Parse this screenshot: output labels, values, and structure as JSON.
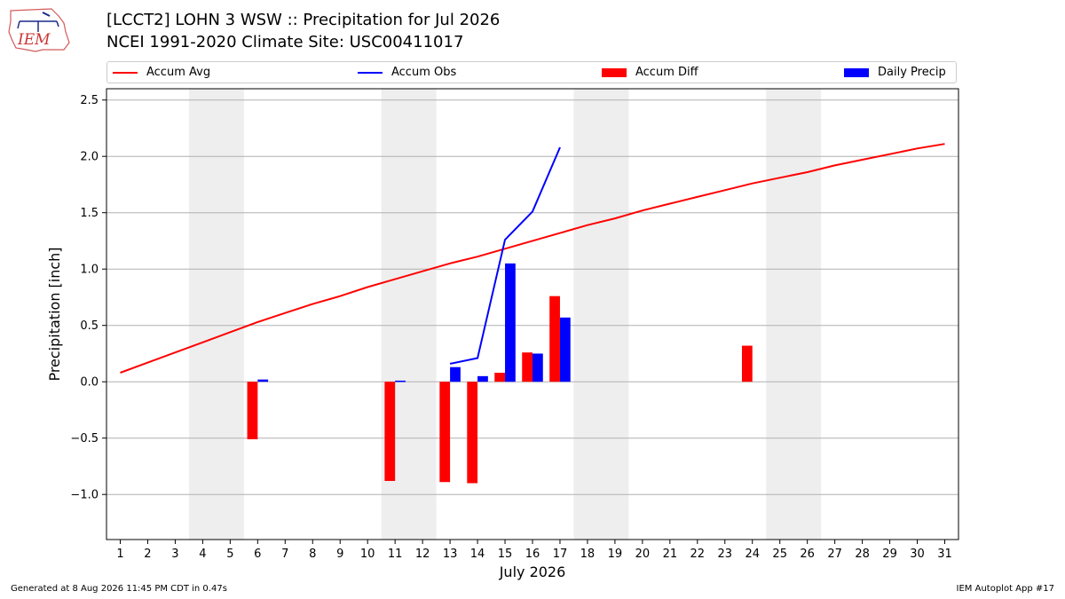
{
  "header": {
    "title_line1": "[LCCT2] LOHN 3 WSW :: Precipitation for Jul 2026",
    "title_line2": "NCEI 1991-2020 Climate Site: USC00411017",
    "logo_text": "IEM"
  },
  "footer": {
    "generated": "Generated at 8 Aug 2026 11:45 PM CDT in 0.47s",
    "app": "IEM Autoplot App #17"
  },
  "legend": {
    "accum_avg": "Accum Avg",
    "accum_obs": "Accum Obs",
    "accum_diff": "Accum Diff",
    "daily_precip": "Daily Precip"
  },
  "colors": {
    "avg": "#ff0000",
    "obs": "#0000ff",
    "diff": "#ff0000",
    "daily": "#0000ff",
    "weekend": "#eeeeee"
  },
  "chart_data": {
    "type": "bar",
    "xlabel": "July 2026",
    "ylabel": "Precipitation [inch]",
    "xlim": [
      0.5,
      31.5
    ],
    "ylim": [
      -1.4,
      2.6
    ],
    "yticks": [
      -1.0,
      -0.5,
      0.0,
      0.5,
      1.0,
      1.5,
      2.0,
      2.5
    ],
    "ytick_labels": [
      "−1.0",
      "−0.5",
      "0.0",
      "0.5",
      "1.0",
      "1.5",
      "2.0",
      "2.5"
    ],
    "days": [
      1,
      2,
      3,
      4,
      5,
      6,
      7,
      8,
      9,
      10,
      11,
      12,
      13,
      14,
      15,
      16,
      17,
      18,
      19,
      20,
      21,
      22,
      23,
      24,
      25,
      26,
      27,
      28,
      29,
      30,
      31
    ],
    "grid": "horizontal",
    "legend_position": "top",
    "weekend_spans": [
      [
        4,
        5
      ],
      [
        11,
        12
      ],
      [
        18,
        19
      ],
      [
        25,
        26
      ]
    ],
    "accum_avg": [
      0.08,
      0.17,
      0.26,
      0.35,
      0.44,
      0.53,
      0.61,
      0.69,
      0.76,
      0.84,
      0.91,
      0.98,
      1.05,
      1.11,
      1.18,
      1.25,
      1.32,
      1.39,
      1.45,
      1.52,
      1.58,
      1.64,
      1.7,
      1.76,
      1.81,
      1.86,
      1.92,
      1.97,
      2.02,
      2.07,
      2.11
    ],
    "accum_obs_days": [
      13,
      14,
      15,
      16,
      17
    ],
    "accum_obs": [
      0.16,
      0.21,
      1.26,
      1.51,
      2.08
    ],
    "accum_diff_days": [
      6,
      11,
      13,
      14,
      15,
      16,
      17,
      24
    ],
    "accum_diff": [
      -0.51,
      -0.88,
      -0.89,
      -0.9,
      0.08,
      0.26,
      0.76,
      0.32
    ],
    "daily_precip_days": [
      6,
      11,
      13,
      14,
      15,
      16,
      17
    ],
    "daily_precip": [
      0.02,
      0.01,
      0.13,
      0.05,
      1.05,
      0.25,
      0.57
    ]
  }
}
